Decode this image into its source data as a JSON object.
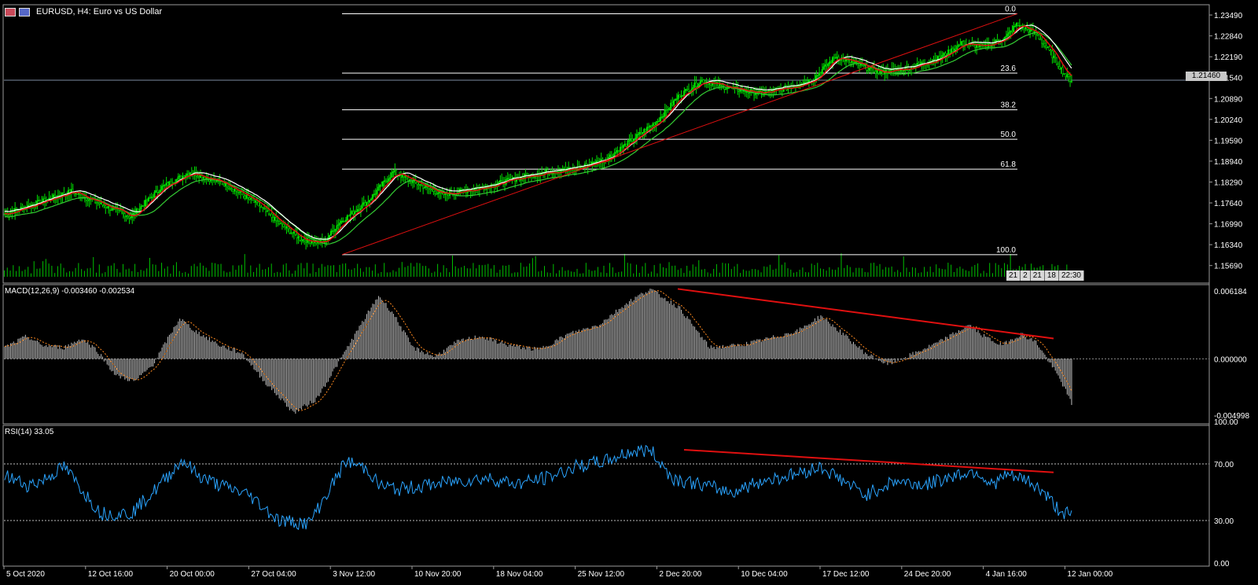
{
  "window": {
    "title": "EURUSD, H4:  Euro vs US Dollar",
    "current_price_tag": "1.21460"
  },
  "indicators": {
    "macd_label": "MACD(12,26,9) -0.003460 -0.002534",
    "rsi_label": "RSI(14) 33.05"
  },
  "time_box": [
    "21",
    "2",
    "21",
    "18",
    "22:30"
  ],
  "colors": {
    "bullish_candle": "#00e000",
    "bearish_candle": "#00e000",
    "ma_fast": "#e01010",
    "ma_slow": "#ffffff",
    "ma_green": "#33cc33",
    "trendline": "#e01010",
    "macd_hist": "#c0c0c0",
    "macd_signal": "#ff8a20",
    "rsi_line": "#2aa4ff",
    "fib_line": "#ffffff"
  },
  "chart_data": [
    {
      "type": "candlestick",
      "name": "main",
      "symbol": "EURUSD",
      "timeframe": "H4",
      "ylim": [
        1.1534,
        1.2381
      ],
      "y_ticks": [
        "1.23490",
        "1.22840",
        "1.22190",
        "1.21540",
        "1.20890",
        "1.20240",
        "1.19590",
        "1.18940",
        "1.18290",
        "1.17640",
        "1.16990",
        "1.16340",
        "1.15690"
      ],
      "x_ticks": [
        "5 Oct 2020",
        "12 Oct 16:00",
        "20 Oct 00:00",
        "27 Oct 04:00",
        "3 Nov 12:00",
        "10 Nov 20:00",
        "18 Nov 04:00",
        "25 Nov 12:00",
        "2 Dec 20:00",
        "10 Dec 04:00",
        "17 Dec 12:00",
        "24 Dec 20:00",
        "4 Jan 16:00",
        "12 Jan 00:00"
      ],
      "close_keypoints": [
        [
          0,
          1.173
        ],
        [
          20,
          1.176
        ],
        [
          45,
          1.18
        ],
        [
          65,
          1.176
        ],
        [
          85,
          1.172
        ],
        [
          105,
          1.181
        ],
        [
          125,
          1.186
        ],
        [
          150,
          1.182
        ],
        [
          170,
          1.176
        ],
        [
          185,
          1.17
        ],
        [
          200,
          1.165
        ],
        [
          215,
          1.164
        ],
        [
          225,
          1.17
        ],
        [
          245,
          1.177
        ],
        [
          262,
          1.186
        ],
        [
          275,
          1.183
        ],
        [
          295,
          1.179
        ],
        [
          320,
          1.181
        ],
        [
          345,
          1.184
        ],
        [
          365,
          1.186
        ],
        [
          385,
          1.187
        ],
        [
          405,
          1.19
        ],
        [
          420,
          1.195
        ],
        [
          440,
          1.202
        ],
        [
          455,
          1.21
        ],
        [
          470,
          1.2145
        ],
        [
          490,
          1.212
        ],
        [
          510,
          1.2105
        ],
        [
          530,
          1.2125
        ],
        [
          545,
          1.215
        ],
        [
          560,
          1.222
        ],
        [
          575,
          1.2195
        ],
        [
          590,
          1.217
        ],
        [
          610,
          1.2185
        ],
        [
          630,
          1.2215
        ],
        [
          645,
          1.226
        ],
        [
          660,
          1.225
        ],
        [
          675,
          1.228
        ],
        [
          682,
          1.232
        ],
        [
          695,
          1.229
        ],
        [
          705,
          1.223
        ],
        [
          715,
          1.216
        ],
        [
          719,
          1.2146
        ]
      ],
      "fibonacci": [
        {
          "label": "0.0",
          "price": 1.2353
        },
        {
          "label": "23.6",
          "price": 1.2168
        },
        {
          "label": "38.2",
          "price": 1.2054
        },
        {
          "label": "50.0",
          "price": 1.1962
        },
        {
          "label": "61.8",
          "price": 1.1869
        },
        {
          "label": "100.0",
          "price": 1.1603
        }
      ],
      "current_price": 1.2146
    },
    {
      "type": "bar",
      "name": "MACD(12,26,9)",
      "macd_value": -0.00346,
      "signal_value": -0.002534,
      "ylim": [
        -0.005,
        0.0063
      ],
      "y_ticks": [
        "0.006184",
        "0.000000",
        "-0.004998"
      ],
      "hist_keypoints": [
        [
          0,
          0.001
        ],
        [
          15,
          0.002
        ],
        [
          25,
          0.0012
        ],
        [
          40,
          0.001
        ],
        [
          52,
          0.0018
        ],
        [
          62,
          0.0008
        ],
        [
          75,
          -0.0015
        ],
        [
          88,
          -0.002
        ],
        [
          100,
          -0.0005
        ],
        [
          118,
          0.0036
        ],
        [
          128,
          0.0025
        ],
        [
          145,
          0.0012
        ],
        [
          160,
          0.0005
        ],
        [
          175,
          -0.002
        ],
        [
          195,
          -0.0048
        ],
        [
          210,
          -0.0036
        ],
        [
          222,
          -0.001
        ],
        [
          240,
          0.003
        ],
        [
          252,
          0.0056
        ],
        [
          262,
          0.004
        ],
        [
          275,
          0.001
        ],
        [
          290,
          0.0002
        ],
        [
          305,
          0.0015
        ],
        [
          320,
          0.002
        ],
        [
          340,
          0.0012
        ],
        [
          360,
          0.0008
        ],
        [
          380,
          0.0022
        ],
        [
          400,
          0.003
        ],
        [
          420,
          0.005
        ],
        [
          435,
          0.0062
        ],
        [
          455,
          0.0045
        ],
        [
          475,
          0.001
        ],
        [
          495,
          0.0012
        ],
        [
          515,
          0.0018
        ],
        [
          535,
          0.0025
        ],
        [
          550,
          0.0038
        ],
        [
          565,
          0.0022
        ],
        [
          580,
          0.0005
        ],
        [
          595,
          -0.0005
        ],
        [
          610,
          0.0003
        ],
        [
          630,
          0.0015
        ],
        [
          650,
          0.003
        ],
        [
          660,
          0.002
        ],
        [
          672,
          0.0012
        ],
        [
          685,
          0.0022
        ],
        [
          695,
          0.0015
        ],
        [
          705,
          -0.0005
        ],
        [
          712,
          -0.002
        ],
        [
          719,
          -0.004
        ]
      ]
    },
    {
      "type": "line",
      "name": "RSI(14)",
      "rsi_value": 33.05,
      "ylim": [
        0,
        100
      ],
      "y_ticks": [
        "100.00",
        "70.00",
        "30.00",
        "0.00"
      ],
      "levels": [
        70,
        30
      ],
      "rsi_keypoints": [
        [
          0,
          62
        ],
        [
          15,
          55
        ],
        [
          25,
          58
        ],
        [
          40,
          68
        ],
        [
          55,
          48
        ],
        [
          65,
          35
        ],
        [
          85,
          35
        ],
        [
          100,
          50
        ],
        [
          120,
          73
        ],
        [
          130,
          62
        ],
        [
          145,
          55
        ],
        [
          165,
          48
        ],
        [
          185,
          30
        ],
        [
          205,
          28
        ],
        [
          215,
          45
        ],
        [
          230,
          72
        ],
        [
          245,
          66
        ],
        [
          252,
          55
        ],
        [
          265,
          52
        ],
        [
          285,
          55
        ],
        [
          305,
          58
        ],
        [
          325,
          60
        ],
        [
          345,
          56
        ],
        [
          365,
          60
        ],
        [
          385,
          68
        ],
        [
          405,
          72
        ],
        [
          420,
          78
        ],
        [
          435,
          80
        ],
        [
          450,
          60
        ],
        [
          470,
          55
        ],
        [
          490,
          50
        ],
        [
          510,
          58
        ],
        [
          530,
          62
        ],
        [
          550,
          68
        ],
        [
          565,
          58
        ],
        [
          580,
          48
        ],
        [
          600,
          58
        ],
        [
          620,
          55
        ],
        [
          640,
          62
        ],
        [
          655,
          65
        ],
        [
          665,
          55
        ],
        [
          675,
          62
        ],
        [
          690,
          58
        ],
        [
          700,
          50
        ],
        [
          710,
          38
        ],
        [
          719,
          33
        ]
      ]
    }
  ]
}
